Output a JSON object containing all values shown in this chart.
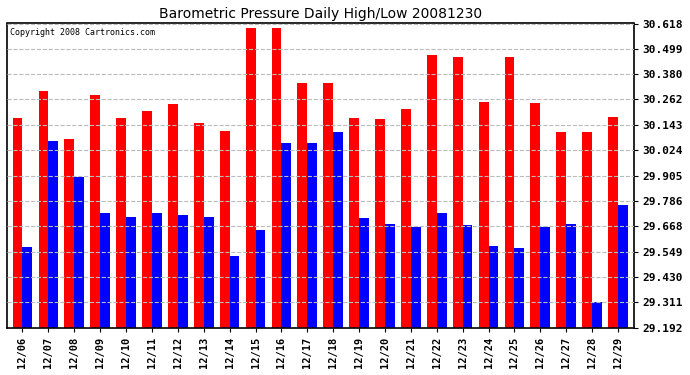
{
  "title": "Barometric Pressure Daily High/Low 20081230",
  "copyright": "Copyright 2008 Cartronics.com",
  "dates": [
    "12/06",
    "12/07",
    "12/08",
    "12/09",
    "12/10",
    "12/11",
    "12/12",
    "12/13",
    "12/14",
    "12/15",
    "12/16",
    "12/17",
    "12/18",
    "12/19",
    "12/20",
    "12/21",
    "12/22",
    "12/23",
    "12/24",
    "12/25",
    "12/26",
    "12/27",
    "12/28",
    "12/29"
  ],
  "highs": [
    30.175,
    30.3,
    30.075,
    30.285,
    30.175,
    30.21,
    30.24,
    30.15,
    30.115,
    30.595,
    30.595,
    30.34,
    30.34,
    30.175,
    30.17,
    30.215,
    30.47,
    30.46,
    30.25,
    30.46,
    30.245,
    30.11,
    30.11,
    30.18
  ],
  "lows": [
    29.57,
    30.065,
    29.9,
    29.73,
    29.71,
    29.73,
    29.72,
    29.71,
    29.53,
    29.65,
    30.06,
    30.06,
    30.11,
    29.705,
    29.68,
    29.665,
    29.73,
    29.675,
    29.575,
    29.565,
    29.665,
    29.68,
    29.315,
    29.768
  ],
  "high_color": "#FF0000",
  "low_color": "#0000FF",
  "bg_color": "#FFFFFF",
  "plot_bg_color": "#FFFFFF",
  "grid_color": "#BBBBBB",
  "yticks": [
    29.192,
    29.311,
    29.43,
    29.549,
    29.668,
    29.786,
    29.905,
    30.024,
    30.143,
    30.262,
    30.38,
    30.499,
    30.618
  ],
  "ymin": 29.192,
  "ymax": 30.618,
  "bar_width": 0.38,
  "figwidth": 6.9,
  "figheight": 3.75,
  "dpi": 100
}
